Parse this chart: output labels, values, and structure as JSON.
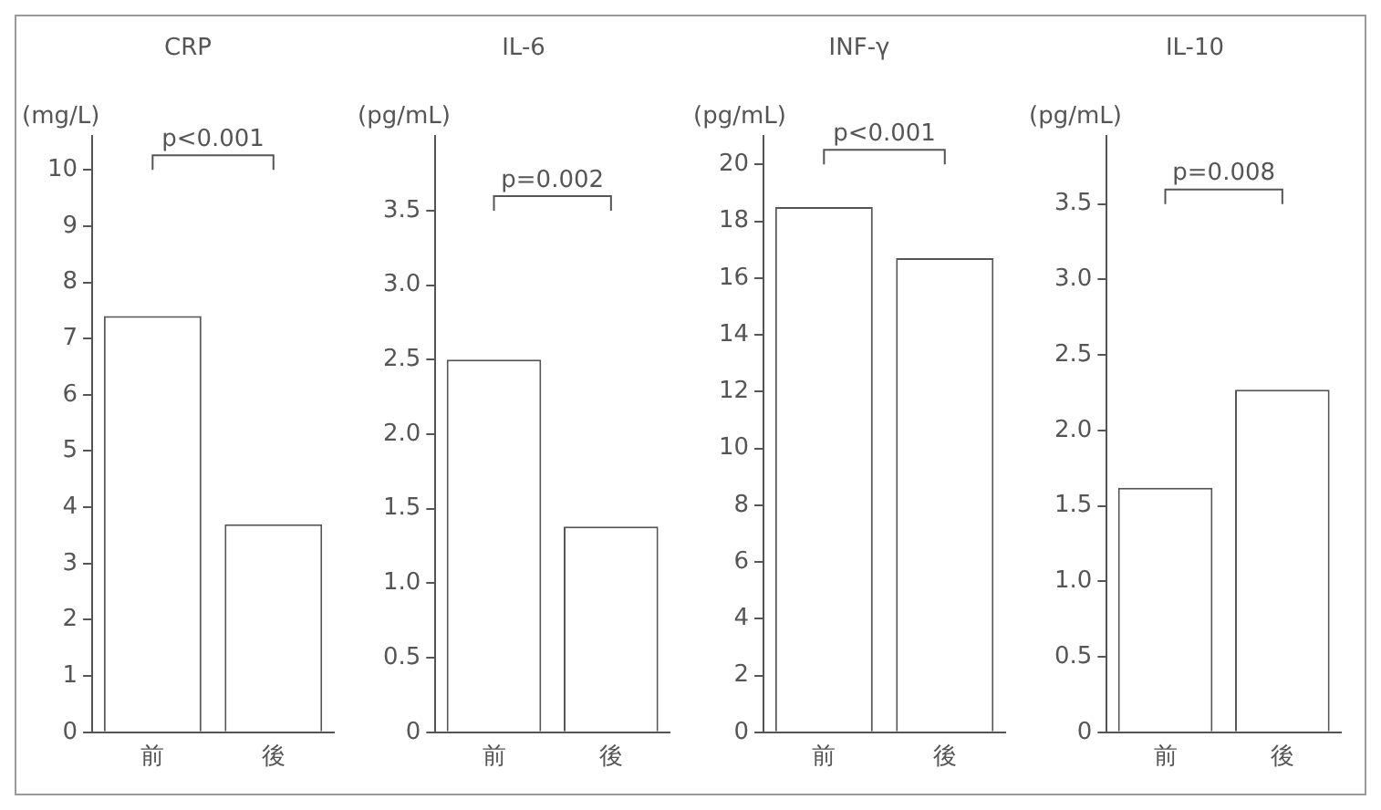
{
  "chart_data": [
    {
      "type": "bar",
      "title": "CRP",
      "ylabel": "(mg/L)",
      "categories": [
        "前",
        "後"
      ],
      "values": [
        7.4,
        3.7
      ],
      "color": "#ffffff",
      "ylim": [
        0,
        10.6
      ],
      "yticks": [
        0,
        1,
        2,
        3,
        4,
        5,
        6,
        7,
        8,
        9,
        10
      ],
      "annotations": [
        "p<0.001"
      ],
      "grid": false,
      "legend": false
    },
    {
      "type": "bar",
      "title": "IL-6",
      "ylabel": "(pg/mL)",
      "categories": [
        "前",
        "後"
      ],
      "values": [
        2.5,
        1.38
      ],
      "color": "#ffffff",
      "ylim": [
        0,
        4.0
      ],
      "yticks": [
        0,
        0.5,
        {
          "value": 1,
          "label": "1.0"
        },
        1.5,
        {
          "value": 2,
          "label": "2.0"
        },
        2.5,
        {
          "value": 3,
          "label": "3.0"
        },
        3.5
      ],
      "annotations": [
        "p=0.002"
      ],
      "grid": false,
      "legend": false
    },
    {
      "type": "bar",
      "title": "INF-γ",
      "ylabel": "(pg/mL)",
      "categories": [
        "前",
        "後"
      ],
      "values": [
        18.5,
        16.7
      ],
      "color": "#ffffff",
      "ylim": [
        0,
        21
      ],
      "yticks": [
        0,
        2,
        4,
        6,
        8,
        10,
        12,
        14,
        16,
        18,
        20
      ],
      "annotations": [
        "p<0.001"
      ],
      "grid": false,
      "legend": false
    },
    {
      "type": "bar",
      "title": "IL-10",
      "ylabel": "(pg/mL)",
      "categories": [
        "前",
        "後"
      ],
      "values": [
        1.62,
        2.27
      ],
      "color": "#ffffff",
      "ylim": [
        0,
        3.95
      ],
      "yticks": [
        0,
        0.5,
        {
          "value": 1,
          "label": "1.0"
        },
        1.5,
        {
          "value": 2,
          "label": "2.0"
        },
        2.5,
        {
          "value": 3,
          "label": "3.0"
        },
        3.5
      ],
      "annotations": [
        "p=0.008"
      ],
      "grid": false,
      "legend": false
    }
  ]
}
